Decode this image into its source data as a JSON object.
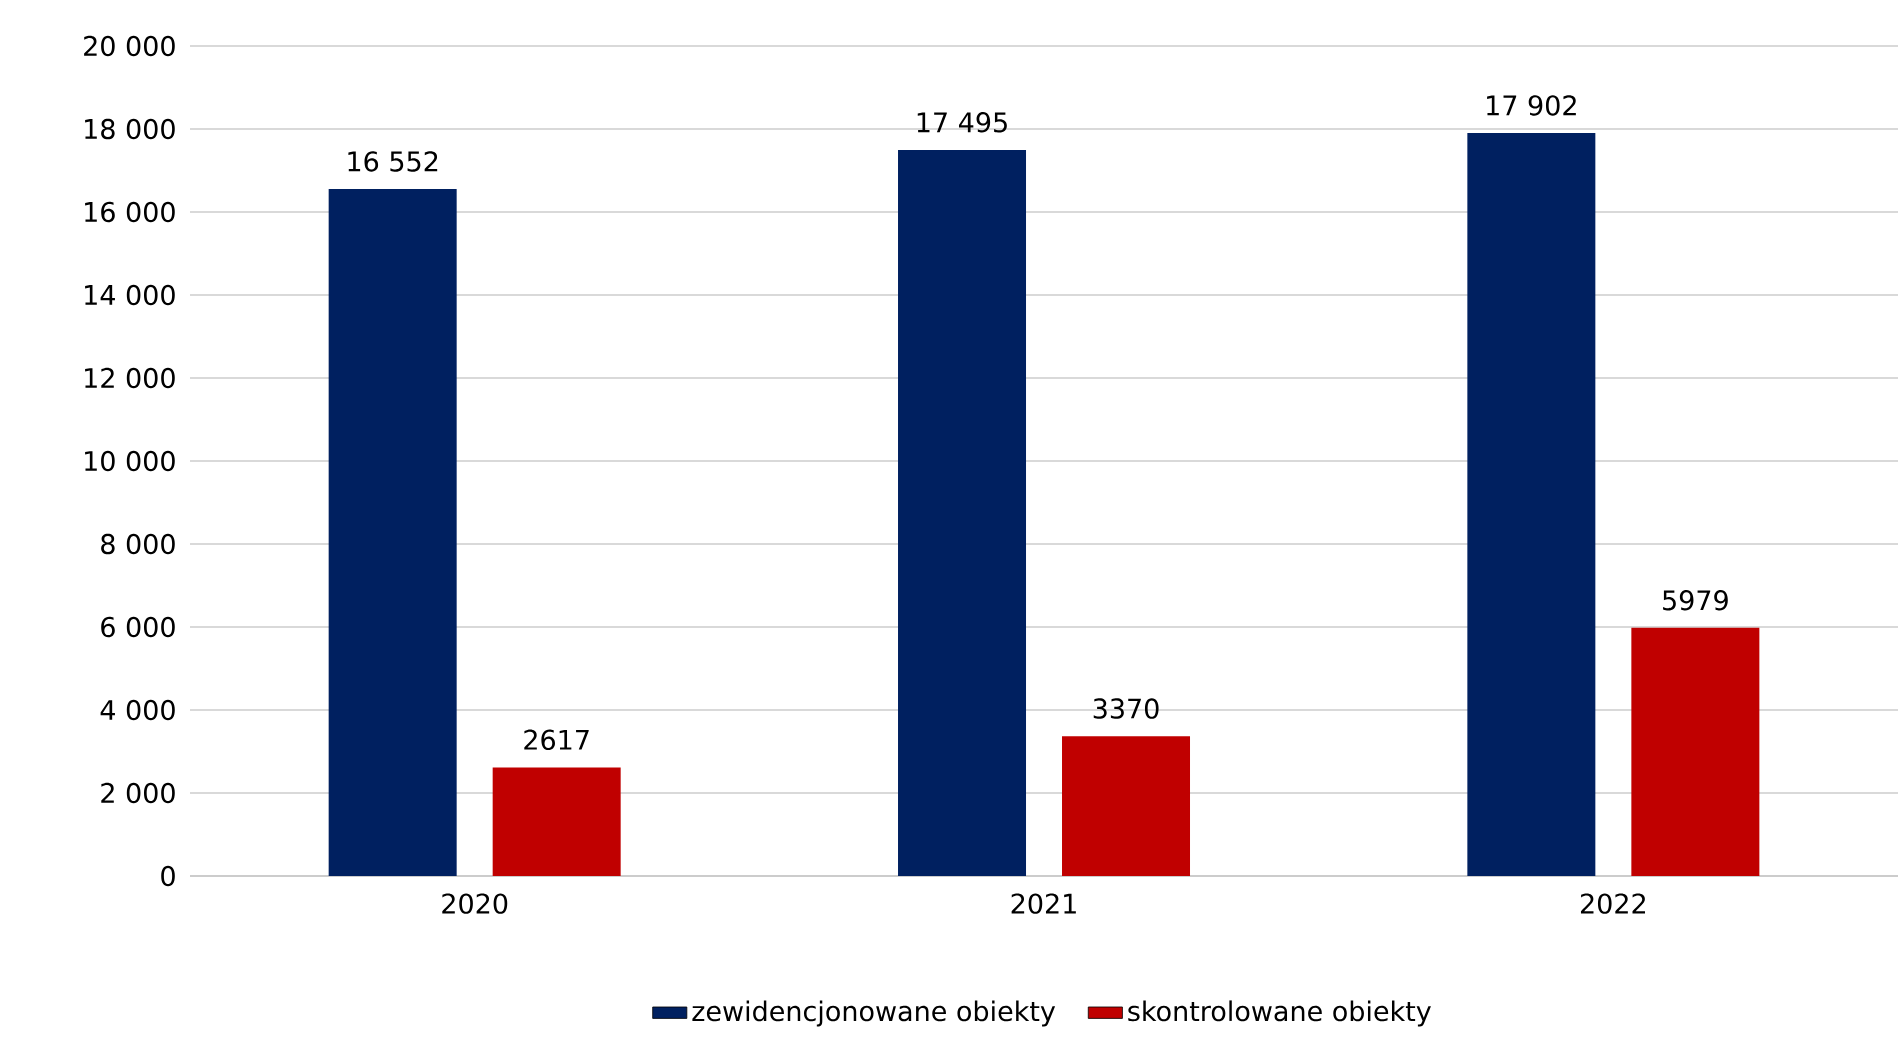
{
  "chart_data": {
    "type": "bar",
    "categories": [
      "2020",
      "2021",
      "2022"
    ],
    "series": [
      {
        "name": "zewidencjonowane obiekty",
        "color": "#002060",
        "values": [
          16552,
          17495,
          17902
        ],
        "value_labels": [
          "16 552",
          "17 495",
          "17 902"
        ]
      },
      {
        "name": "skontrolowane obiekty",
        "color": "#c00000",
        "values": [
          2617,
          3370,
          5979
        ],
        "value_labels": [
          "2617",
          "3370",
          "5979"
        ]
      }
    ],
    "ylim": [
      0,
      20000
    ],
    "yticks": [
      0,
      {
        "value": 2000,
        "label": "2 000"
      },
      {
        "value": 4000,
        "label": "4 000"
      },
      {
        "value": 6000,
        "label": "6 000"
      },
      {
        "value": 8000,
        "label": "8 000"
      },
      {
        "value": 10000,
        "label": "10 000"
      },
      {
        "value": 12000,
        "label": "12 000"
      },
      {
        "value": 14000,
        "label": "14 000"
      },
      {
        "value": 16000,
        "label": "16 000"
      },
      {
        "value": 18000,
        "label": "18 000"
      },
      {
        "value": 20000,
        "label": "20 000"
      }
    ],
    "grid": "y",
    "legend": "bottom"
  }
}
